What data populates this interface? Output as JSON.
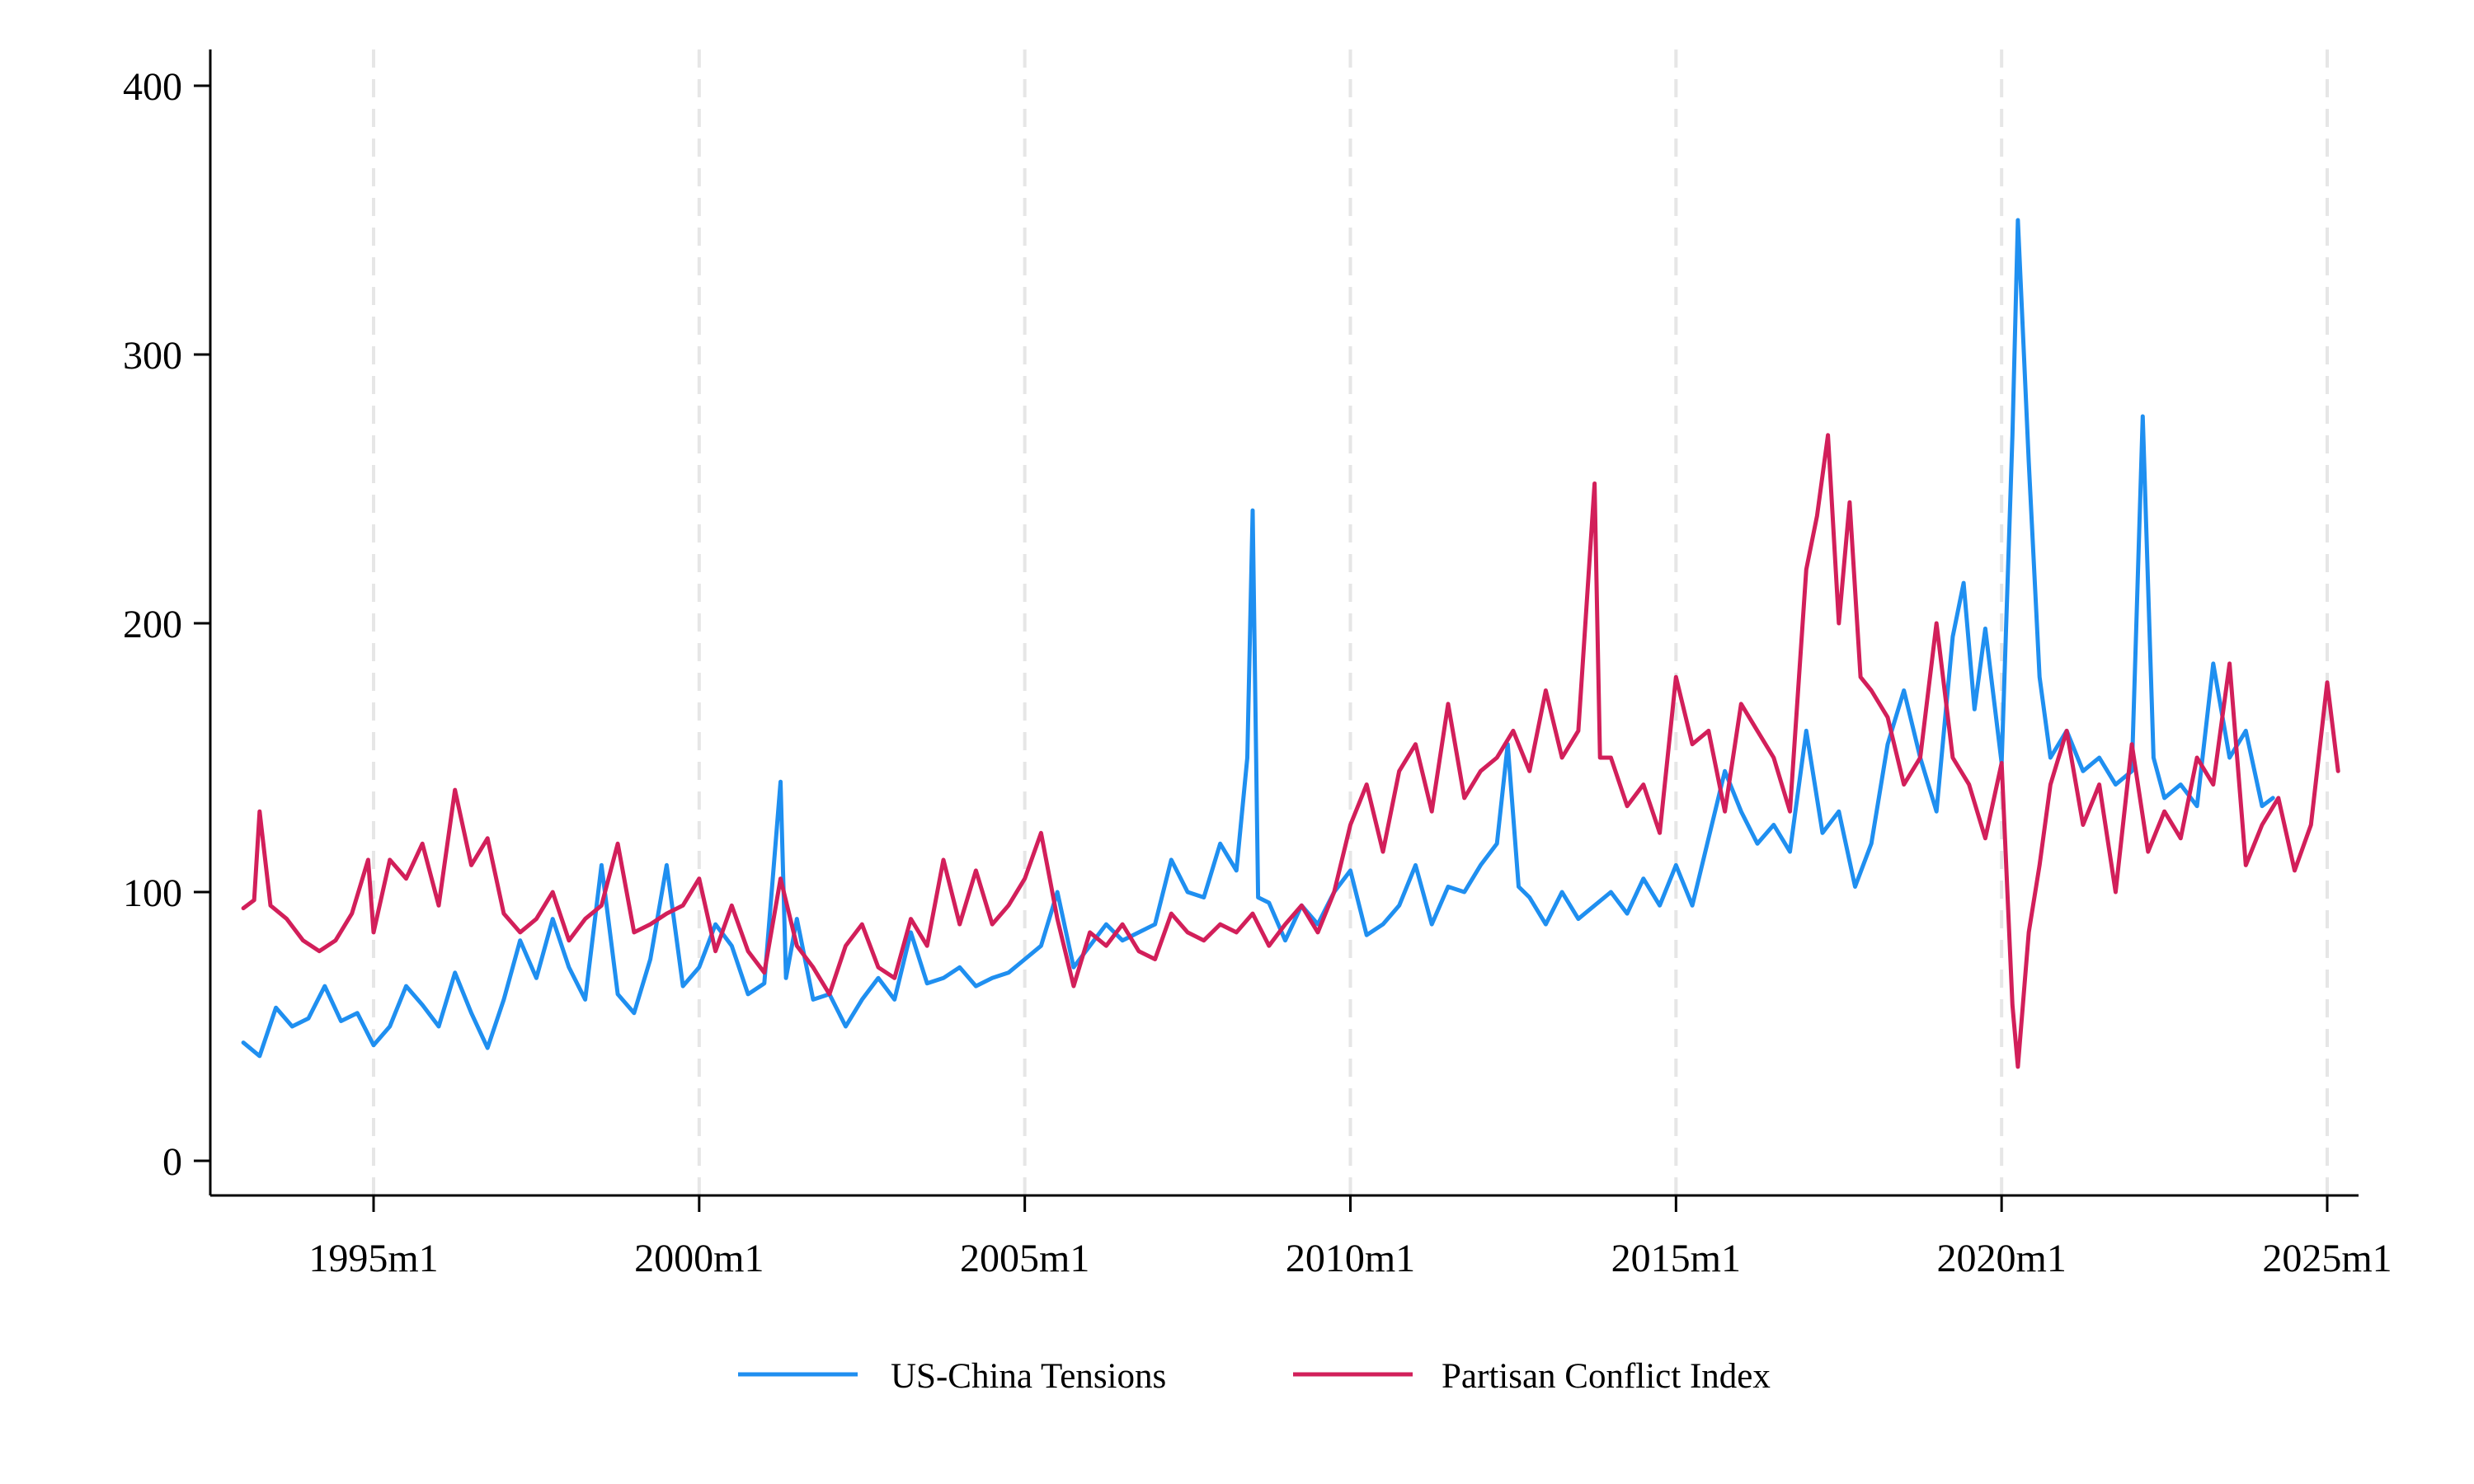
{
  "chart_data": {
    "type": "line",
    "title": "",
    "xlabel": "",
    "ylabel": "",
    "x_range": [
      "1993m1",
      "2025m3"
    ],
    "ylim": [
      0,
      400
    ],
    "y_ticks": [
      0,
      100,
      200,
      300,
      400
    ],
    "x_ticks": [
      "1995m1",
      "2000m1",
      "2005m1",
      "2010m1",
      "2015m1",
      "2020m1",
      "2025m1"
    ],
    "x_gridlines": "dashed vertical at each x tick",
    "y_gridlines": false,
    "legend_position": "bottom",
    "series": [
      {
        "name": "US-China Tensions",
        "color": "#1f8ff0",
        "points": [
          [
            "1993m1",
            44
          ],
          [
            "1993m4",
            39
          ],
          [
            "1993m7",
            57
          ],
          [
            "1993m10",
            50
          ],
          [
            "1994m1",
            53
          ],
          [
            "1994m4",
            65
          ],
          [
            "1994m7",
            52
          ],
          [
            "1994m10",
            55
          ],
          [
            "1995m1",
            43
          ],
          [
            "1995m4",
            50
          ],
          [
            "1995m7",
            65
          ],
          [
            "1995m10",
            58
          ],
          [
            "1996m1",
            50
          ],
          [
            "1996m4",
            70
          ],
          [
            "1996m7",
            55
          ],
          [
            "1996m10",
            42
          ],
          [
            "1997m1",
            60
          ],
          [
            "1997m4",
            82
          ],
          [
            "1997m7",
            68
          ],
          [
            "1997m10",
            90
          ],
          [
            "1998m1",
            72
          ],
          [
            "1998m4",
            60
          ],
          [
            "1998m7",
            110
          ],
          [
            "1998m10",
            62
          ],
          [
            "1999m1",
            55
          ],
          [
            "1999m4",
            75
          ],
          [
            "1999m7",
            110
          ],
          [
            "1999m10",
            65
          ],
          [
            "2000m1",
            72
          ],
          [
            "2000m4",
            88
          ],
          [
            "2000m7",
            80
          ],
          [
            "2000m10",
            62
          ],
          [
            "2001m1",
            66
          ],
          [
            "2001m4",
            141
          ],
          [
            "2001m5",
            68
          ],
          [
            "2001m7",
            90
          ],
          [
            "2001m10",
            60
          ],
          [
            "2002m1",
            62
          ],
          [
            "2002m4",
            50
          ],
          [
            "2002m7",
            60
          ],
          [
            "2002m10",
            68
          ],
          [
            "2003m1",
            60
          ],
          [
            "2003m4",
            85
          ],
          [
            "2003m7",
            66
          ],
          [
            "2003m10",
            68
          ],
          [
            "2004m1",
            72
          ],
          [
            "2004m4",
            65
          ],
          [
            "2004m7",
            68
          ],
          [
            "2004m10",
            70
          ],
          [
            "2005m1",
            75
          ],
          [
            "2005m4",
            80
          ],
          [
            "2005m7",
            100
          ],
          [
            "2005m10",
            72
          ],
          [
            "2006m1",
            80
          ],
          [
            "2006m4",
            88
          ],
          [
            "2006m7",
            82
          ],
          [
            "2006m10",
            85
          ],
          [
            "2007m1",
            88
          ],
          [
            "2007m4",
            112
          ],
          [
            "2007m7",
            100
          ],
          [
            "2007m10",
            98
          ],
          [
            "2008m1",
            118
          ],
          [
            "2008m4",
            108
          ],
          [
            "2008m6",
            150
          ],
          [
            "2008m7",
            242
          ],
          [
            "2008m8",
            98
          ],
          [
            "2008m10",
            96
          ],
          [
            "2009m1",
            82
          ],
          [
            "2009m4",
            95
          ],
          [
            "2009m7",
            88
          ],
          [
            "2009m10",
            100
          ],
          [
            "2010m1",
            108
          ],
          [
            "2010m4",
            84
          ],
          [
            "2010m7",
            88
          ],
          [
            "2010m10",
            95
          ],
          [
            "2011m1",
            110
          ],
          [
            "2011m4",
            88
          ],
          [
            "2011m7",
            102
          ],
          [
            "2011m10",
            100
          ],
          [
            "2012m1",
            110
          ],
          [
            "2012m4",
            118
          ],
          [
            "2012m6",
            155
          ],
          [
            "2012m8",
            102
          ],
          [
            "2012m10",
            98
          ],
          [
            "2013m1",
            88
          ],
          [
            "2013m4",
            100
          ],
          [
            "2013m7",
            90
          ],
          [
            "2013m10",
            95
          ],
          [
            "2014m1",
            100
          ],
          [
            "2014m4",
            92
          ],
          [
            "2014m7",
            105
          ],
          [
            "2014m10",
            95
          ],
          [
            "2015m1",
            110
          ],
          [
            "2015m4",
            95
          ],
          [
            "2015m7",
            120
          ],
          [
            "2015m10",
            145
          ],
          [
            "2016m1",
            130
          ],
          [
            "2016m4",
            118
          ],
          [
            "2016m7",
            125
          ],
          [
            "2016m10",
            115
          ],
          [
            "2017m1",
            160
          ],
          [
            "2017m4",
            122
          ],
          [
            "2017m7",
            130
          ],
          [
            "2017m10",
            102
          ],
          [
            "2018m1",
            118
          ],
          [
            "2018m4",
            155
          ],
          [
            "2018m7",
            175
          ],
          [
            "2018m10",
            150
          ],
          [
            "2019m1",
            130
          ],
          [
            "2019m4",
            195
          ],
          [
            "2019m6",
            215
          ],
          [
            "2019m8",
            168
          ],
          [
            "2019m10",
            198
          ],
          [
            "2020m1",
            148
          ],
          [
            "2020m3",
            270
          ],
          [
            "2020m4",
            350
          ],
          [
            "2020m6",
            260
          ],
          [
            "2020m8",
            180
          ],
          [
            "2020m10",
            150
          ],
          [
            "2021m1",
            160
          ],
          [
            "2021m4",
            145
          ],
          [
            "2021m7",
            150
          ],
          [
            "2021m10",
            140
          ],
          [
            "2022m1",
            145
          ],
          [
            "2022m3",
            277
          ],
          [
            "2022m5",
            150
          ],
          [
            "2022m7",
            135
          ],
          [
            "2022m10",
            140
          ],
          [
            "2023m1",
            132
          ],
          [
            "2023m4",
            185
          ],
          [
            "2023m7",
            150
          ],
          [
            "2023m10",
            160
          ],
          [
            "2024m1",
            132
          ],
          [
            "2024m3",
            135
          ]
        ]
      },
      {
        "name": "Partisan Conflict Index",
        "color": "#d21f5a",
        "points": [
          [
            "1993m1",
            94
          ],
          [
            "1993m3",
            97
          ],
          [
            "1993m4",
            130
          ],
          [
            "1993m6",
            95
          ],
          [
            "1993m9",
            90
          ],
          [
            "1993m12",
            82
          ],
          [
            "1994m3",
            78
          ],
          [
            "1994m6",
            82
          ],
          [
            "1994m9",
            92
          ],
          [
            "1994m12",
            112
          ],
          [
            "1995m1",
            85
          ],
          [
            "1995m4",
            112
          ],
          [
            "1995m7",
            105
          ],
          [
            "1995m10",
            118
          ],
          [
            "1996m1",
            95
          ],
          [
            "1996m4",
            138
          ],
          [
            "1996m7",
            110
          ],
          [
            "1996m10",
            120
          ],
          [
            "1997m1",
            92
          ],
          [
            "1997m4",
            85
          ],
          [
            "1997m7",
            90
          ],
          [
            "1997m10",
            100
          ],
          [
            "1998m1",
            82
          ],
          [
            "1998m4",
            90
          ],
          [
            "1998m7",
            95
          ],
          [
            "1998m10",
            118
          ],
          [
            "1999m1",
            85
          ],
          [
            "1999m4",
            88
          ],
          [
            "1999m7",
            92
          ],
          [
            "1999m10",
            95
          ],
          [
            "2000m1",
            105
          ],
          [
            "2000m4",
            78
          ],
          [
            "2000m7",
            95
          ],
          [
            "2000m10",
            78
          ],
          [
            "2001m1",
            70
          ],
          [
            "2001m4",
            105
          ],
          [
            "2001m7",
            80
          ],
          [
            "2001m10",
            72
          ],
          [
            "2002m1",
            62
          ],
          [
            "2002m4",
            80
          ],
          [
            "2002m7",
            88
          ],
          [
            "2002m10",
            72
          ],
          [
            "2003m1",
            68
          ],
          [
            "2003m4",
            90
          ],
          [
            "2003m7",
            80
          ],
          [
            "2003m10",
            112
          ],
          [
            "2004m1",
            88
          ],
          [
            "2004m4",
            108
          ],
          [
            "2004m7",
            88
          ],
          [
            "2004m10",
            95
          ],
          [
            "2005m1",
            105
          ],
          [
            "2005m4",
            122
          ],
          [
            "2005m7",
            90
          ],
          [
            "2005m10",
            65
          ],
          [
            "2006m1",
            85
          ],
          [
            "2006m4",
            80
          ],
          [
            "2006m7",
            88
          ],
          [
            "2006m10",
            78
          ],
          [
            "2007m1",
            75
          ],
          [
            "2007m4",
            92
          ],
          [
            "2007m7",
            85
          ],
          [
            "2007m10",
            82
          ],
          [
            "2008m1",
            88
          ],
          [
            "2008m4",
            85
          ],
          [
            "2008m7",
            92
          ],
          [
            "2008m10",
            80
          ],
          [
            "2009m1",
            88
          ],
          [
            "2009m4",
            95
          ],
          [
            "2009m7",
            85
          ],
          [
            "2009m10",
            100
          ],
          [
            "2010m1",
            125
          ],
          [
            "2010m4",
            140
          ],
          [
            "2010m7",
            115
          ],
          [
            "2010m10",
            145
          ],
          [
            "2011m1",
            155
          ],
          [
            "2011m4",
            130
          ],
          [
            "2011m7",
            170
          ],
          [
            "2011m10",
            135
          ],
          [
            "2012m1",
            145
          ],
          [
            "2012m4",
            150
          ],
          [
            "2012m7",
            160
          ],
          [
            "2012m10",
            145
          ],
          [
            "2013m1",
            175
          ],
          [
            "2013m4",
            150
          ],
          [
            "2013m7",
            160
          ],
          [
            "2013m10",
            252
          ],
          [
            "2013m11",
            150
          ],
          [
            "2014m1",
            150
          ],
          [
            "2014m4",
            132
          ],
          [
            "2014m7",
            140
          ],
          [
            "2014m10",
            122
          ],
          [
            "2015m1",
            180
          ],
          [
            "2015m4",
            155
          ],
          [
            "2015m7",
            160
          ],
          [
            "2015m10",
            130
          ],
          [
            "2016m1",
            170
          ],
          [
            "2016m4",
            160
          ],
          [
            "2016m7",
            150
          ],
          [
            "2016m10",
            130
          ],
          [
            "2017m1",
            220
          ],
          [
            "2017m3",
            240
          ],
          [
            "2017m5",
            270
          ],
          [
            "2017m7",
            200
          ],
          [
            "2017m9",
            245
          ],
          [
            "2017m11",
            180
          ],
          [
            "2018m1",
            175
          ],
          [
            "2018m4",
            165
          ],
          [
            "2018m7",
            140
          ],
          [
            "2018m10",
            150
          ],
          [
            "2019m1",
            200
          ],
          [
            "2019m4",
            150
          ],
          [
            "2019m7",
            140
          ],
          [
            "2019m10",
            120
          ],
          [
            "2020m1",
            148
          ],
          [
            "2020m3",
            58
          ],
          [
            "2020m4",
            35
          ],
          [
            "2020m6",
            85
          ],
          [
            "2020m8",
            110
          ],
          [
            "2020m10",
            140
          ],
          [
            "2021m1",
            160
          ],
          [
            "2021m4",
            125
          ],
          [
            "2021m7",
            140
          ],
          [
            "2021m10",
            100
          ],
          [
            "2022m1",
            155
          ],
          [
            "2022m4",
            115
          ],
          [
            "2022m7",
            130
          ],
          [
            "2022m10",
            120
          ],
          [
            "2023m1",
            150
          ],
          [
            "2023m4",
            140
          ],
          [
            "2023m7",
            185
          ],
          [
            "2023m10",
            110
          ],
          [
            "2024m1",
            125
          ],
          [
            "2024m4",
            135
          ],
          [
            "2024m7",
            108
          ],
          [
            "2024m10",
            125
          ],
          [
            "2025m1",
            178
          ],
          [
            "2025m3",
            145
          ]
        ]
      }
    ]
  }
}
